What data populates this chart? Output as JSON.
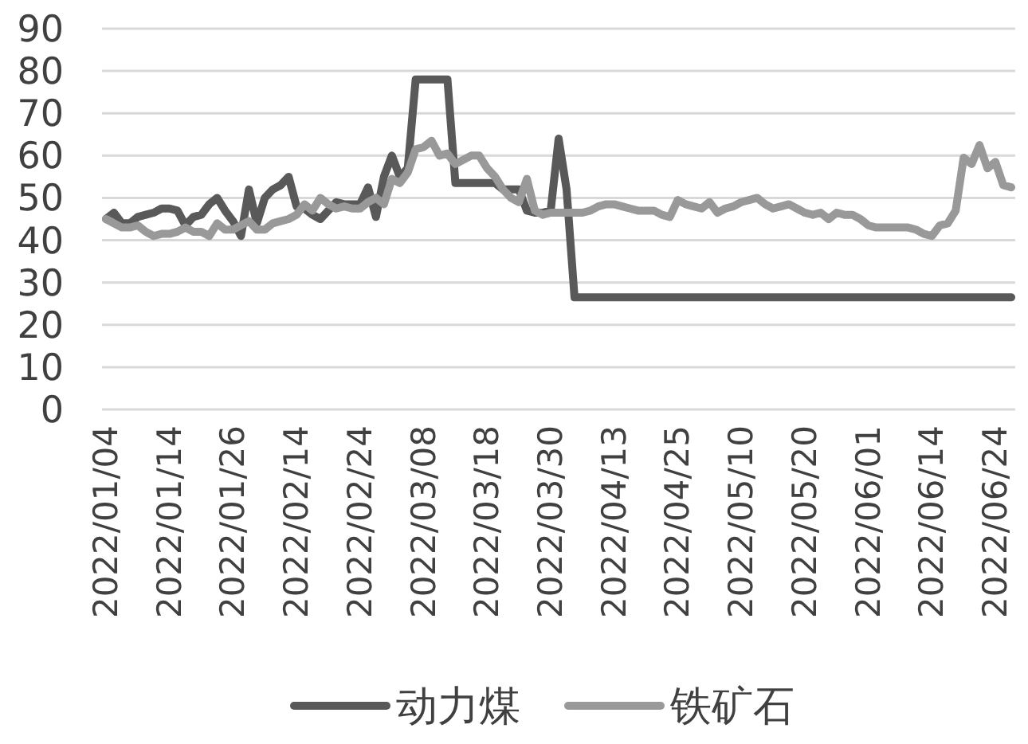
{
  "chart_data": {
    "type": "line",
    "categories": [
      "2022/01/04",
      null,
      null,
      null,
      null,
      null,
      null,
      null,
      "2022/01/14",
      null,
      null,
      null,
      null,
      null,
      null,
      null,
      "2022/01/26",
      null,
      null,
      null,
      null,
      null,
      null,
      null,
      "2022/02/14",
      null,
      null,
      null,
      null,
      null,
      null,
      null,
      "2022/02/24",
      null,
      null,
      null,
      null,
      null,
      null,
      null,
      "2022/03/08",
      null,
      null,
      null,
      null,
      null,
      null,
      null,
      "2022/03/18",
      null,
      null,
      null,
      null,
      null,
      null,
      null,
      "2022/03/30",
      null,
      null,
      null,
      null,
      null,
      null,
      null,
      "2022/04/13",
      null,
      null,
      null,
      null,
      null,
      null,
      null,
      "2022/04/25",
      null,
      null,
      null,
      null,
      null,
      null,
      null,
      "2022/05/10",
      null,
      null,
      null,
      null,
      null,
      null,
      null,
      "2022/05/20",
      null,
      null,
      null,
      null,
      null,
      null,
      null,
      "2022/06/01",
      null,
      null,
      null,
      null,
      null,
      null,
      null,
      "2022/06/14",
      null,
      null,
      null,
      null,
      null,
      null,
      null,
      "2022/06/24",
      null,
      null
    ],
    "series": [
      {
        "name": "动力煤",
        "color": "#595959",
        "values": [
          45,
          46.5,
          44,
          44,
          45.5,
          46,
          46.5,
          47.5,
          47.5,
          47,
          43.5,
          45.5,
          46,
          48.5,
          50,
          47,
          44.5,
          41,
          52,
          44,
          50,
          52,
          53,
          55,
          48,
          47.5,
          46,
          45,
          47,
          49,
          48.5,
          48.5,
          48.5,
          52.5,
          45.5,
          55,
          60,
          55,
          57,
          78,
          78,
          78,
          78,
          78,
          53.5,
          53.5,
          53.5,
          53.5,
          53.5,
          53.5,
          52,
          52,
          52,
          47,
          46.5,
          46.5,
          47,
          64,
          52,
          26.5,
          26.5,
          26.5,
          26.5,
          26.5,
          26.5,
          26.5,
          26.5,
          26.5,
          26.5,
          26.5,
          26.5,
          26.5,
          26.5,
          26.5,
          26.5,
          26.5,
          26.5,
          26.5,
          26.5,
          26.5,
          26.5,
          26.5,
          26.5,
          26.5,
          26.5,
          26.5,
          26.5,
          26.5,
          26.5,
          26.5,
          26.5,
          26.5,
          26.5,
          26.5,
          26.5,
          26.5,
          26.5,
          26.5,
          26.5,
          26.5,
          26.5,
          26.5,
          26.5,
          26.5,
          26.5,
          26.5,
          26.5,
          26.5,
          26.5,
          26.5,
          26.5,
          26.5,
          26.5,
          26.5,
          26.5
        ]
      },
      {
        "name": "铁矿石",
        "color": "#999999",
        "values": [
          45,
          44,
          43,
          43,
          43.5,
          42,
          41,
          41.5,
          41.5,
          42,
          43,
          42,
          42,
          41,
          44,
          42.5,
          42.5,
          43.5,
          44.5,
          42.5,
          42.5,
          44,
          44.5,
          45,
          46,
          48.5,
          47,
          50,
          48.5,
          47.5,
          48,
          47.5,
          47.5,
          49,
          50,
          48.5,
          54.5,
          53.5,
          56,
          61.5,
          62,
          63.5,
          60,
          60.5,
          58,
          59,
          60,
          60,
          57,
          55,
          52,
          50,
          49,
          54.5,
          47,
          46,
          46.5,
          46.5,
          46.5,
          46.5,
          46.5,
          47,
          48,
          48.5,
          48.5,
          48,
          47.5,
          47,
          47,
          47,
          46,
          45.5,
          49.5,
          48.5,
          48,
          47.5,
          49,
          46.5,
          47.5,
          48,
          49,
          49.5,
          50,
          48.5,
          47.5,
          48,
          48.5,
          47.5,
          46.5,
          46,
          46.5,
          45,
          46.5,
          46,
          46,
          45,
          43.5,
          43,
          43,
          43,
          43,
          43,
          42.5,
          41.5,
          41,
          43.5,
          44,
          47,
          59.5,
          58,
          62.5,
          57,
          58.5,
          53,
          52.5
        ]
      }
    ],
    "ylim": [
      0,
      90
    ],
    "yticks": [
      0,
      10,
      20,
      30,
      40,
      50,
      60,
      70,
      80,
      90
    ],
    "grid": "y",
    "legend": "bottom"
  }
}
